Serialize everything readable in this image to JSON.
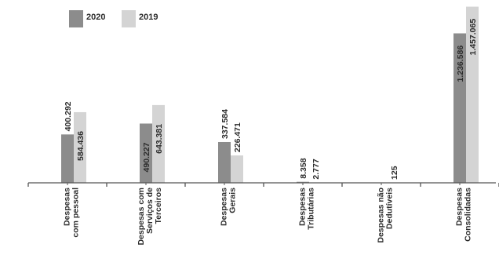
{
  "chart_data": {
    "type": "bar",
    "categories": [
      [
        "Despesas",
        "com pessoal"
      ],
      [
        "Despesas com",
        "Serviços de",
        "Terceiros"
      ],
      [
        "Despesas",
        "Gerais"
      ],
      [
        "Despesas",
        "Tributárias"
      ],
      [
        "Despesas não",
        "Dedutíveis"
      ],
      [
        "Despesas",
        "Consolidadas"
      ]
    ],
    "series": [
      {
        "name": "2020",
        "color": "#8c8c8c",
        "values": [
          400.292,
          490.227,
          337.584,
          8.358,
          0,
          1236.586
        ],
        "labels": [
          "400.292",
          "490.227",
          "337.584",
          "8.358",
          "",
          "1.236.586"
        ]
      },
      {
        "name": "2019",
        "color": "#d4d4d4",
        "values": [
          584.436,
          643.381,
          226.471,
          2.777,
          0.125,
          1457.065
        ],
        "labels": [
          "584.436",
          "643.381",
          "226.471",
          "2.777",
          "125",
          "1.457.065"
        ]
      }
    ],
    "legend_position": "top-left",
    "grid": false,
    "ylim": [
      0,
      1480
    ]
  }
}
